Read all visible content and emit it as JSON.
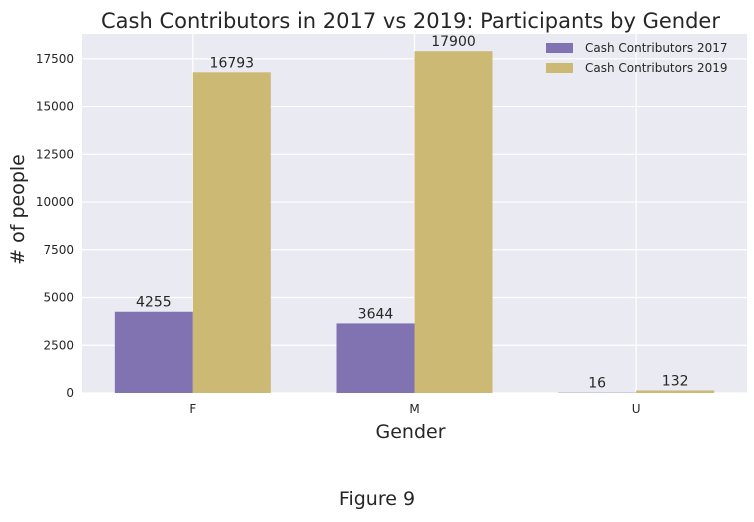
{
  "chart_data": {
    "type": "bar",
    "title": "Cash Contributors in 2017 vs 2019: Participants by Gender",
    "xlabel": "Gender",
    "ylabel": "# of people",
    "categories": [
      "F",
      "M",
      "U"
    ],
    "series": [
      {
        "name": "Cash Contributors 2017",
        "values": [
          4255,
          3644,
          16
        ],
        "color": "#8172b2"
      },
      {
        "name": "Cash Contributors 2019",
        "values": [
          16793,
          17900,
          132
        ],
        "color": "#ccb974"
      }
    ],
    "ylim": [
      0,
      18800
    ],
    "yticks": [
      0,
      2500,
      5000,
      7500,
      10000,
      12500,
      15000,
      17500
    ],
    "grid": true,
    "legend": "top-right",
    "background": "#eaeaf2"
  },
  "caption": "Figure 9"
}
